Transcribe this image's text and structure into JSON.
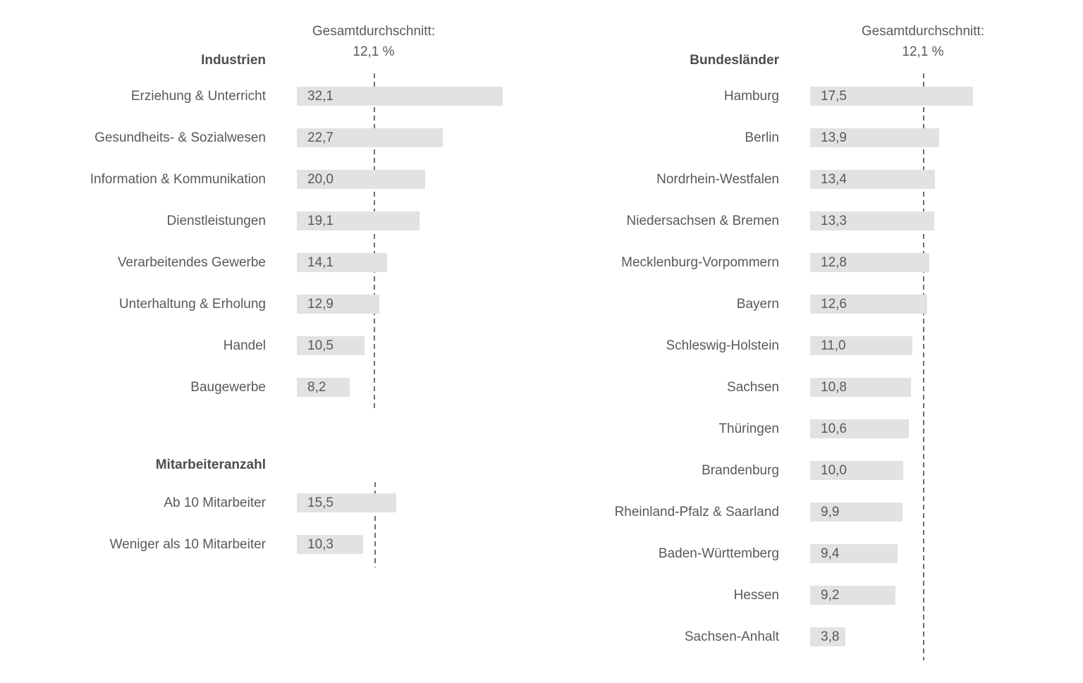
{
  "chart_data": [
    {
      "type": "bar",
      "orientation": "horizontal",
      "title": "Industrien",
      "unit": "%",
      "grid": false,
      "xlim": [
        0,
        34
      ],
      "categories": [
        "Erziehung & Unterricht",
        "Gesundheits- & Sozialwesen",
        "Information & Kommunikation",
        "Dienstleistungen",
        "Verarbeitendes Gewerbe",
        "Unterhaltung & Erholung",
        "Handel",
        "Baugewerbe"
      ],
      "values": [
        32.1,
        22.7,
        20.0,
        19.1,
        14.1,
        12.9,
        10.5,
        8.2
      ],
      "value_labels": [
        "32,1",
        "22,7",
        "20,0",
        "19,1",
        "14,1",
        "12,9",
        "10,5",
        "8,2"
      ],
      "reference_line": {
        "value": 12.1,
        "label": "Gesamtdurchschnitt:",
        "value_label": "12,1 %"
      }
    },
    {
      "type": "bar",
      "orientation": "horizontal",
      "title": "Mitarbeiteranzahl",
      "unit": "%",
      "grid": false,
      "xlim": [
        0,
        34
      ],
      "categories": [
        "Ab 10 Mitarbeiter",
        "Weniger als 10 Mitarbeiter"
      ],
      "values": [
        15.5,
        10.3
      ],
      "value_labels": [
        "15,5",
        "10,3"
      ],
      "reference_line": {
        "value": 12.1
      }
    },
    {
      "type": "bar",
      "orientation": "horizontal",
      "title": "Bundesländer",
      "unit": "%",
      "grid": false,
      "xlim": [
        0,
        19
      ],
      "categories": [
        "Hamburg",
        "Berlin",
        "Nordrhein-Westfalen",
        "Niedersachsen & Bremen",
        "Mecklenburg-Vorpommern",
        "Bayern",
        "Schleswig-Holstein",
        "Sachsen",
        "Thüringen",
        "Brandenburg",
        "Rheinland-Pfalz & Saarland",
        "Baden-Württemberg",
        "Hessen",
        "Sachsen-Anhalt"
      ],
      "values": [
        17.5,
        13.9,
        13.4,
        13.3,
        12.8,
        12.6,
        11.0,
        10.8,
        10.6,
        10.0,
        9.9,
        9.4,
        9.2,
        3.8
      ],
      "value_labels": [
        "17,5",
        "13,9",
        "13,4",
        "13,3",
        "12,8",
        "12,6",
        "11,0",
        "10,8",
        "10,6",
        "10,0",
        "9,9",
        "9,4",
        "9,2",
        "3,8"
      ],
      "reference_line": {
        "value": 12.1,
        "label": "Gesamtdurchschnitt:",
        "value_label": "12,1 %"
      }
    }
  ],
  "colors": {
    "bar_fill": "#e2e2e2",
    "label_text": "#595959",
    "heading_text": "#4d4d4d",
    "reference_line": "#6f6f6f"
  }
}
